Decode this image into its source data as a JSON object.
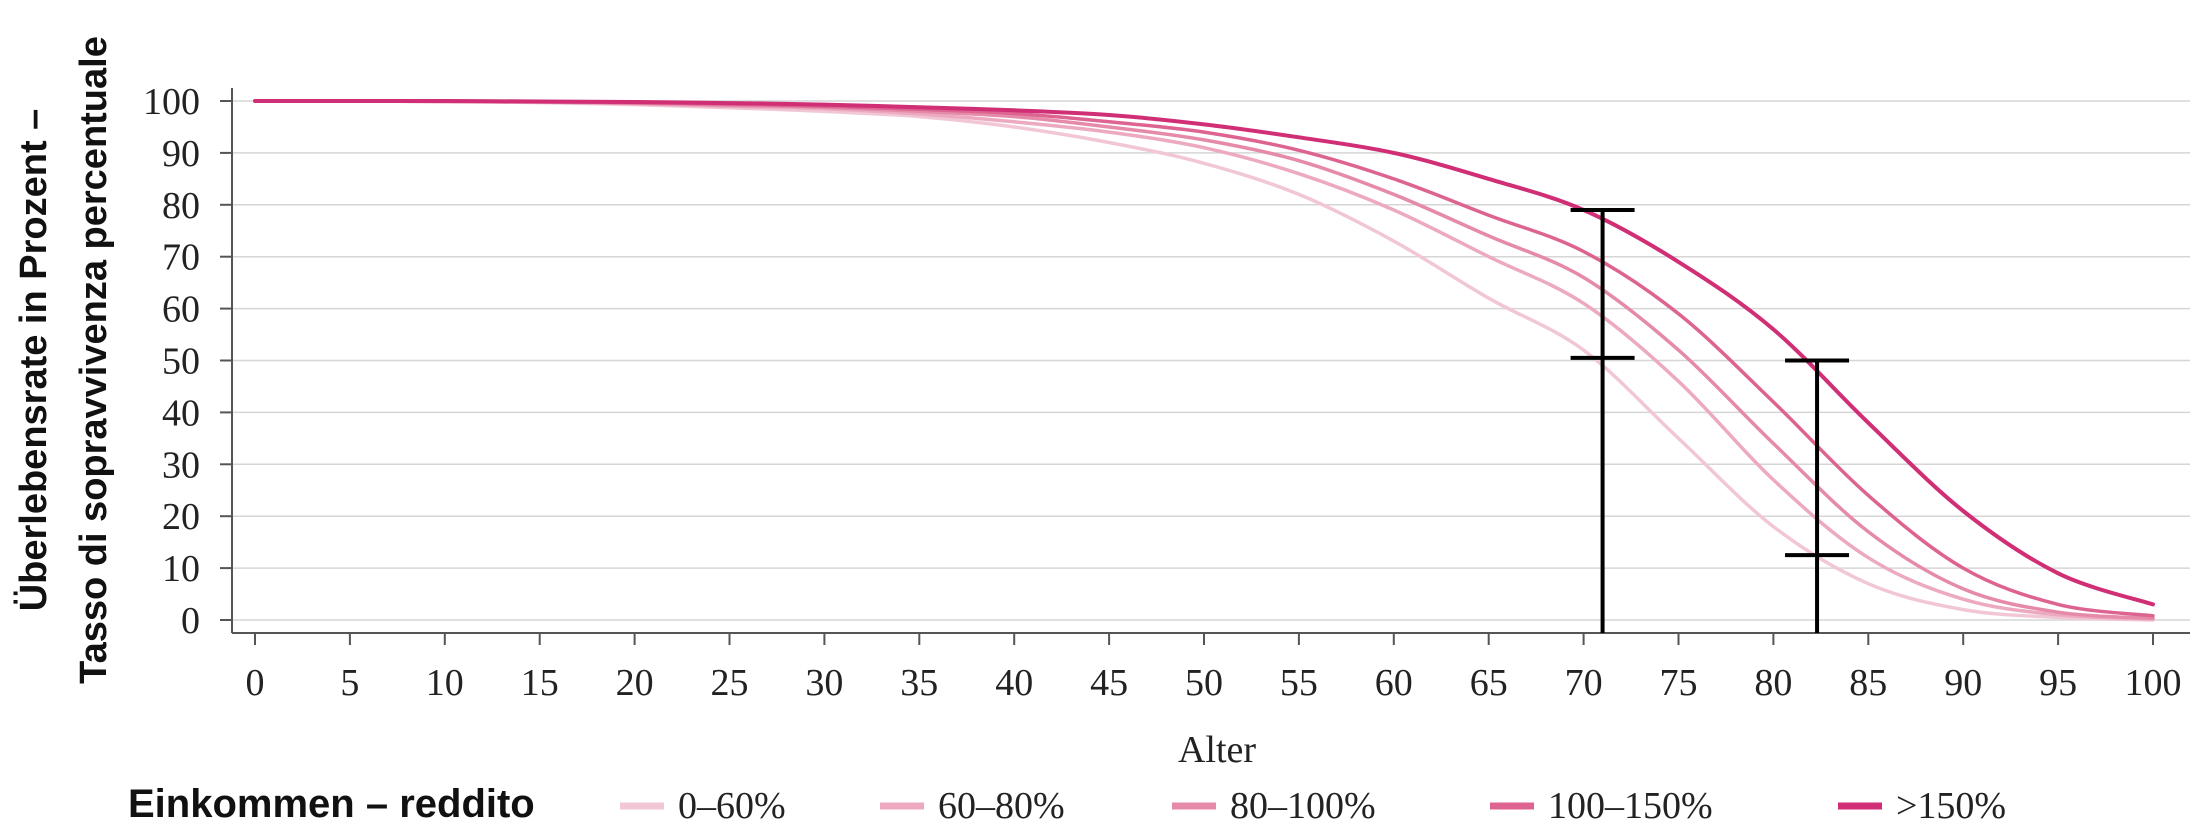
{
  "chart_data": {
    "type": "line",
    "title": "",
    "xlabel": "Alter",
    "ylabel_line1": "Überlebensrate in Prozent –",
    "ylabel_line2": "Tasso di sopravvivenza percentuale",
    "xlim": [
      0,
      100
    ],
    "ylim": [
      0,
      100
    ],
    "x_ticks": [
      "0",
      "5",
      "10",
      "15",
      "20",
      "25",
      "30",
      "35",
      "40",
      "45",
      "50",
      "55",
      "60",
      "65",
      "70",
      "75",
      "80",
      "85",
      "90",
      "95",
      "100"
    ],
    "y_ticks": [
      "0",
      "10",
      "20",
      "30",
      "40",
      "50",
      "60",
      "70",
      "80",
      "90",
      "100"
    ],
    "grid": "horizontal",
    "legend_title": "Einkommen – reddito",
    "legend_position": "bottom",
    "x": [
      0,
      5,
      10,
      15,
      20,
      25,
      30,
      35,
      40,
      45,
      50,
      55,
      60,
      65,
      70,
      75,
      80,
      85,
      90,
      95,
      100
    ],
    "series": [
      {
        "name": "0–60%",
        "color": "#f2c7d5",
        "values": [
          100,
          100,
          99.9,
          99.7,
          99.3,
          98.7,
          98,
          97,
          95,
          92,
          88,
          82,
          73,
          62,
          52,
          35,
          18,
          7,
          2,
          0.5,
          0
        ]
      },
      {
        "name": "60–80%",
        "color": "#eca9c0",
        "values": [
          100,
          100,
          99.9,
          99.8,
          99.5,
          99,
          98.5,
          97.5,
          96,
          94,
          91,
          86,
          79,
          70,
          61,
          46,
          27,
          12,
          4,
          1,
          0.2
        ]
      },
      {
        "name": "80–100%",
        "color": "#e58aa9",
        "values": [
          100,
          100,
          99.9,
          99.8,
          99.6,
          99.2,
          98.8,
          98,
          97,
          95,
          92.5,
          88.5,
          82,
          74,
          66,
          52,
          34,
          17,
          6,
          1.5,
          0.3
        ]
      },
      {
        "name": "100–150%",
        "color": "#dd6391",
        "values": [
          100,
          100,
          100,
          99.9,
          99.7,
          99.4,
          99,
          98.4,
          97.6,
          96,
          94,
          90.5,
          85,
          78,
          71,
          59,
          42,
          24,
          10,
          3,
          0.8
        ]
      },
      {
        "name": ">150%",
        "color": "#d02e75",
        "values": [
          100,
          100,
          100,
          99.9,
          99.8,
          99.6,
          99.3,
          98.8,
          98.2,
          97.3,
          95.5,
          93,
          90,
          85,
          79,
          69,
          56,
          38,
          21,
          9,
          3
        ]
      }
    ],
    "markers": [
      {
        "x": 71,
        "y_top": 79,
        "y_mid": 50.5
      },
      {
        "x": 82.3,
        "y_top": 50,
        "y_mid": 12.5
      }
    ]
  }
}
